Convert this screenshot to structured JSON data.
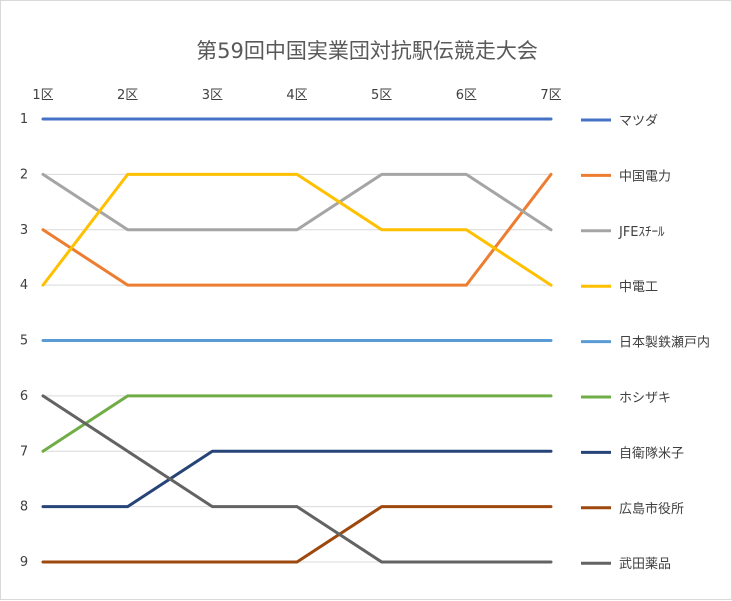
{
  "chart_data": {
    "type": "line",
    "title": "第59回中国実業団対抗駅伝競走大会",
    "categories": [
      "1区",
      "2区",
      "3区",
      "4区",
      "5区",
      "6区",
      "7区"
    ],
    "y_ticks": [
      "1",
      "2",
      "3",
      "4",
      "5",
      "6",
      "7",
      "8",
      "9"
    ],
    "ylim": [
      1,
      9
    ],
    "y_reversed": true,
    "x_axis_position": "top",
    "grid": true,
    "legend_position": "right",
    "series": [
      {
        "name": "マツダ",
        "color": "#4472C4",
        "values": [
          1,
          1,
          1,
          1,
          1,
          1,
          1
        ]
      },
      {
        "name": "中国電力",
        "color": "#ED7D31",
        "values": [
          3,
          4,
          4,
          4,
          4,
          4,
          2
        ]
      },
      {
        "name": "JFEｽﾁｰﾙ",
        "color": "#A5A5A5",
        "values": [
          2,
          3,
          3,
          3,
          2,
          2,
          3
        ]
      },
      {
        "name": "中電工",
        "color": "#FFC000",
        "values": [
          4,
          2,
          2,
          2,
          3,
          3,
          4
        ]
      },
      {
        "name": "日本製鉄瀬戸内",
        "color": "#5B9BD5",
        "values": [
          5,
          5,
          5,
          5,
          5,
          5,
          5
        ]
      },
      {
        "name": "ホシザキ",
        "color": "#70AD47",
        "values": [
          7,
          6,
          6,
          6,
          6,
          6,
          6
        ]
      },
      {
        "name": "自衛隊米子",
        "color": "#264478",
        "values": [
          8,
          8,
          7,
          7,
          7,
          7,
          7
        ]
      },
      {
        "name": "広島市役所",
        "color": "#9E480E",
        "values": [
          9,
          9,
          9,
          9,
          8,
          8,
          8
        ]
      },
      {
        "name": "武田薬品",
        "color": "#636363",
        "values": [
          6,
          7,
          8,
          8,
          9,
          9,
          9
        ]
      }
    ]
  }
}
